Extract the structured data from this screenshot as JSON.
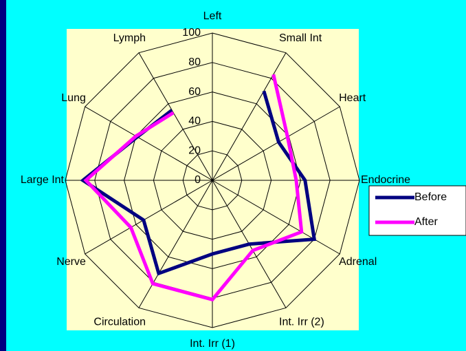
{
  "chart_data": {
    "type": "radar",
    "categories": [
      "Left",
      "Small Int",
      "Heart",
      "Endocrine",
      "Adrenal",
      "Int. Irr (2)",
      "Int. Irr (1)",
      "Circulation",
      "Nerve",
      "Large Int",
      "Lung",
      "Lymph"
    ],
    "series": [
      {
        "name": "Before",
        "color": "#000080",
        "values": [
          null,
          70,
          52,
          63,
          80,
          50,
          50,
          73,
          54,
          88,
          59,
          55
        ]
      },
      {
        "name": "After",
        "color": "#ff00ff",
        "values": [
          null,
          83,
          59,
          57,
          70,
          55,
          81,
          81,
          64,
          86,
          60,
          53
        ]
      }
    ],
    "ylim": [
      0,
      100
    ],
    "yticks": [
      0,
      20,
      40,
      60,
      80,
      100
    ],
    "grid": true,
    "legend": "right"
  }
}
